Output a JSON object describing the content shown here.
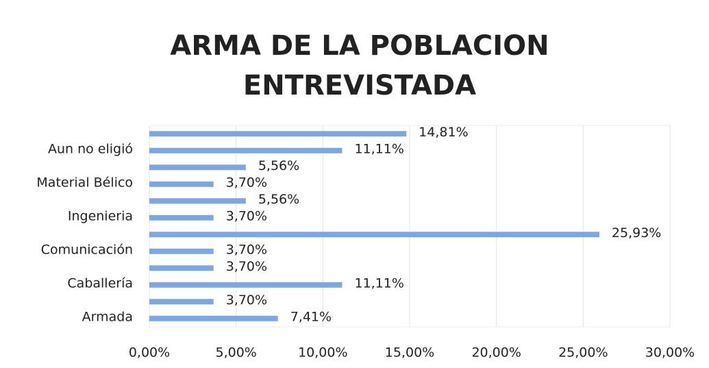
{
  "chart_data": {
    "type": "hbar",
    "title": "ARMA DE LA POBLACION ENTREVISTADA",
    "categories": [
      null,
      "Aun no eligió",
      null,
      "Material Bélico",
      null,
      "Ingenieria",
      null,
      "Comunicación",
      null,
      "Caballería",
      null,
      "Armada"
    ],
    "values": [
      14.81,
      11.11,
      5.56,
      3.7,
      5.56,
      3.7,
      25.93,
      3.7,
      3.7,
      11.11,
      3.7,
      7.41
    ],
    "value_labels": [
      "14,81%",
      "11,11%",
      "5,56%",
      "3,70%",
      "5,56%",
      "3,70%",
      "25,93%",
      "3,70%",
      "3,70%",
      "11,11%",
      "3,70%",
      "7,41%"
    ],
    "color": "#7ea6e0",
    "xlim": [
      0,
      30
    ],
    "xticks": [
      {
        "value": 0,
        "label": "0,00%"
      },
      {
        "value": 5,
        "label": "5,00%"
      },
      {
        "value": 10,
        "label": "10,00%"
      },
      {
        "value": 15,
        "label": "15,00%"
      },
      {
        "value": 20,
        "label": "20,00%"
      },
      {
        "value": 25,
        "label": "25,00%"
      },
      {
        "value": 30,
        "label": "30,00%"
      }
    ],
    "grid": true
  }
}
